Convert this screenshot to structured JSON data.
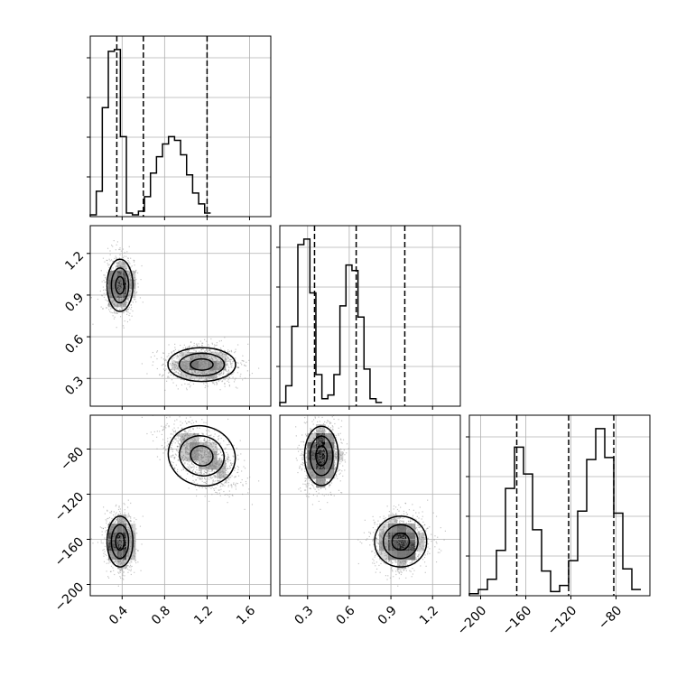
{
  "chart_data": {
    "type": "corner",
    "grid": true,
    "colors": {
      "line": "#000000",
      "grid": "#b0b0b0",
      "points": "#808080"
    },
    "parameters": [
      {
        "index": 0,
        "range": [
          0.1,
          1.8
        ],
        "ticks": [
          0.4,
          0.8,
          1.2,
          1.6
        ],
        "tick_labels": [
          "0.4",
          "0.8",
          "1.2",
          "1.6"
        ],
        "quantiles": [
          0.35,
          0.6,
          1.2
        ]
      },
      {
        "index": 1,
        "range": [
          0.1,
          1.4
        ],
        "ticks": [
          0.3,
          0.6,
          0.9,
          1.2
        ],
        "tick_labels": [
          "0.3",
          "0.6",
          "0.9",
          "1.2"
        ],
        "quantiles": [
          0.35,
          0.65,
          1.0
        ]
      },
      {
        "index": 2,
        "range": [
          -210,
          -50
        ],
        "ticks": [
          -200,
          -160,
          -120,
          -80
        ],
        "tick_labels": [
          "−200",
          "−160",
          "−120",
          "−80"
        ],
        "quantiles": [
          -168,
          -122,
          -82
        ]
      }
    ],
    "histograms": [
      {
        "param": 0,
        "edges_start": 0.1,
        "bin_width": 0.0567,
        "counts": [
          1,
          14,
          60,
          91,
          92,
          44,
          2,
          1,
          3,
          11,
          24,
          33,
          40,
          44,
          42,
          34,
          23,
          13,
          7,
          2
        ]
      },
      {
        "param": 1,
        "edges_start": 0.1,
        "bin_width": 0.0433,
        "counts": [
          2,
          11,
          43,
          87,
          90,
          61,
          17,
          4,
          6,
          17,
          54,
          76,
          73,
          48,
          20,
          4,
          2
        ]
      },
      {
        "param": 2,
        "edges_start": -210,
        "bin_width": 8,
        "counts": [
          1,
          3,
          8,
          22,
          52,
          72,
          59,
          32,
          12,
          2,
          5,
          17,
          41,
          66,
          81,
          67,
          40,
          13,
          3
        ]
      }
    ],
    "modes": [
      {
        "weight": 0.5,
        "mean": [
          0.38,
          0.97,
          -162
        ],
        "sd": [
          0.065,
          0.1,
          12
        ]
      },
      {
        "weight": 0.5,
        "mean": [
          1.15,
          0.4,
          -86
        ],
        "sd": [
          0.17,
          0.065,
          14
        ]
      }
    ],
    "contour_levels": [
      0.5,
      1.0,
      1.5
    ],
    "sample_count_per_mode": 1300
  }
}
